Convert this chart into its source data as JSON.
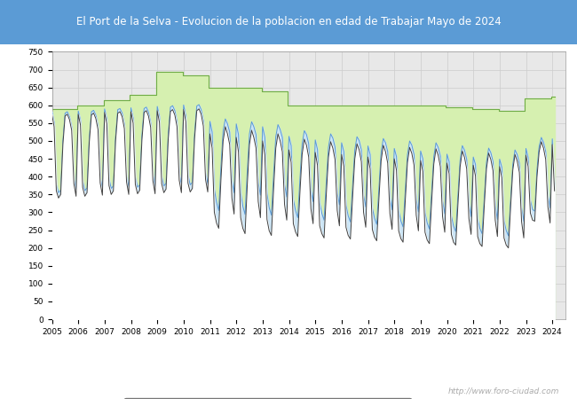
{
  "title": "El Port de la Selva - Evolucion de la poblacion en edad de Trabajar Mayo de 2024",
  "title_bg_color": "#5b9bd5",
  "title_text_color": "#ffffff",
  "plot_bg_color": "#e8e8e8",
  "chart_bg_color": "#ffffff",
  "grid_color": "#cccccc",
  "ylim": [
    0,
    750
  ],
  "yticks": [
    0,
    50,
    100,
    150,
    200,
    250,
    300,
    350,
    400,
    450,
    500,
    550,
    600,
    650,
    700,
    750
  ],
  "watermark": "http://www.foro-ciudad.com",
  "hab_color_fill": "#d6f0b0",
  "hab_color_edge": "#70ad47",
  "parados_color_fill": "#cce5f5",
  "parados_color_edge": "#5b9bd5",
  "ocupados_color": "#404040",
  "hab_data": [
    590,
    590,
    590,
    590,
    590,
    590,
    590,
    590,
    590,
    590,
    590,
    590,
    600,
    600,
    600,
    600,
    600,
    600,
    600,
    600,
    600,
    600,
    600,
    600,
    615,
    615,
    615,
    615,
    615,
    615,
    615,
    615,
    615,
    615,
    615,
    615,
    630,
    630,
    630,
    630,
    630,
    630,
    630,
    630,
    630,
    630,
    630,
    630,
    695,
    695,
    695,
    695,
    695,
    695,
    695,
    695,
    695,
    695,
    695,
    695,
    685,
    685,
    685,
    685,
    685,
    685,
    685,
    685,
    685,
    685,
    685,
    685,
    650,
    650,
    650,
    650,
    650,
    650,
    650,
    650,
    650,
    650,
    650,
    650,
    650,
    650,
    650,
    650,
    650,
    650,
    650,
    650,
    650,
    650,
    650,
    650,
    640,
    640,
    640,
    640,
    640,
    640,
    640,
    640,
    640,
    640,
    640,
    640,
    600,
    600,
    600,
    600,
    600,
    600,
    600,
    600,
    600,
    600,
    600,
    600,
    600,
    600,
    600,
    600,
    600,
    600,
    600,
    600,
    600,
    600,
    600,
    600,
    600,
    600,
    600,
    600,
    600,
    600,
    600,
    600,
    600,
    600,
    600,
    600,
    600,
    600,
    600,
    600,
    600,
    600,
    600,
    600,
    600,
    600,
    600,
    600,
    600,
    600,
    600,
    600,
    600,
    600,
    600,
    600,
    600,
    600,
    600,
    600,
    600,
    600,
    600,
    600,
    600,
    600,
    600,
    600,
    600,
    600,
    600,
    600,
    595,
    595,
    595,
    595,
    595,
    595,
    595,
    595,
    595,
    595,
    595,
    595,
    590,
    590,
    590,
    590,
    590,
    590,
    590,
    590,
    590,
    590,
    590,
    590,
    585,
    585,
    585,
    585,
    585,
    585,
    585,
    585,
    585,
    585,
    585,
    585,
    620,
    620,
    620,
    620,
    620,
    620,
    620,
    620,
    620,
    620,
    620,
    620,
    625,
    625
  ],
  "ocupados_data": [
    575,
    540,
    360,
    340,
    350,
    490,
    570,
    575,
    560,
    530,
    380,
    345,
    575,
    545,
    370,
    345,
    355,
    495,
    573,
    578,
    563,
    532,
    382,
    348,
    580,
    548,
    375,
    350,
    360,
    500,
    578,
    582,
    568,
    535,
    385,
    350,
    582,
    550,
    378,
    352,
    362,
    502,
    580,
    585,
    570,
    538,
    388,
    352,
    585,
    552,
    380,
    355,
    365,
    505,
    583,
    588,
    573,
    540,
    390,
    355,
    588,
    554,
    382,
    357,
    367,
    507,
    585,
    590,
    575,
    542,
    392,
    357,
    520,
    480,
    300,
    270,
    255,
    390,
    500,
    540,
    520,
    490,
    340,
    295,
    510,
    470,
    285,
    255,
    240,
    375,
    490,
    530,
    510,
    480,
    330,
    285,
    500,
    460,
    280,
    248,
    235,
    365,
    480,
    520,
    500,
    470,
    322,
    278,
    475,
    440,
    268,
    245,
    232,
    355,
    462,
    505,
    488,
    455,
    310,
    268,
    468,
    432,
    262,
    240,
    228,
    348,
    455,
    498,
    480,
    448,
    305,
    262,
    462,
    428,
    258,
    235,
    225,
    342,
    450,
    492,
    475,
    442,
    300,
    258,
    455,
    422,
    252,
    230,
    220,
    338,
    445,
    488,
    470,
    438,
    296,
    252,
    450,
    418,
    248,
    226,
    216,
    332,
    440,
    482,
    465,
    432,
    292,
    248,
    445,
    414,
    244,
    222,
    212,
    328,
    435,
    478,
    460,
    428,
    288,
    244,
    438,
    408,
    238,
    216,
    208,
    322,
    428,
    472,
    454,
    422,
    282,
    238,
    432,
    402,
    232,
    212,
    204,
    318,
    422,
    466,
    448,
    416,
    278,
    232,
    428,
    396,
    228,
    208,
    200,
    314,
    418,
    462,
    444,
    412,
    274,
    228,
    460,
    428,
    298,
    278,
    275,
    398,
    470,
    498,
    480,
    448,
    315,
    270,
    490,
    360
  ],
  "parados_data": [
    8,
    12,
    18,
    15,
    12,
    10,
    8,
    7,
    8,
    10,
    14,
    16,
    9,
    13,
    19,
    16,
    13,
    11,
    9,
    8,
    9,
    11,
    15,
    17,
    10,
    14,
    20,
    17,
    14,
    12,
    10,
    9,
    10,
    12,
    16,
    18,
    11,
    15,
    21,
    18,
    15,
    13,
    11,
    10,
    11,
    13,
    17,
    19,
    12,
    16,
    22,
    19,
    16,
    14,
    12,
    11,
    12,
    14,
    18,
    20,
    13,
    17,
    23,
    20,
    17,
    15,
    13,
    12,
    13,
    15,
    19,
    21,
    35,
    45,
    65,
    58,
    50,
    35,
    28,
    22,
    28,
    35,
    50,
    60,
    38,
    48,
    70,
    62,
    54,
    38,
    30,
    24,
    30,
    38,
    53,
    63,
    40,
    50,
    72,
    65,
    57,
    40,
    32,
    26,
    32,
    40,
    55,
    65,
    38,
    47,
    68,
    60,
    53,
    37,
    29,
    24,
    30,
    37,
    52,
    62,
    35,
    44,
    65,
    57,
    50,
    35,
    27,
    22,
    28,
    35,
    49,
    59,
    33,
    42,
    62,
    55,
    48,
    33,
    25,
    20,
    26,
    33,
    47,
    57,
    31,
    40,
    60,
    53,
    46,
    31,
    24,
    19,
    25,
    32,
    46,
    55,
    29,
    38,
    57,
    50,
    43,
    29,
    22,
    18,
    23,
    30,
    44,
    53,
    27,
    36,
    55,
    48,
    41,
    27,
    21,
    17,
    22,
    29,
    43,
    52,
    25,
    34,
    52,
    45,
    38,
    25,
    19,
    15,
    20,
    27,
    41,
    50,
    23,
    32,
    50,
    43,
    36,
    23,
    18,
    14,
    19,
    26,
    40,
    48,
    21,
    30,
    48,
    41,
    34,
    21,
    16,
    13,
    18,
    25,
    39,
    47,
    19,
    25,
    35,
    30,
    28,
    20,
    15,
    12,
    16,
    22,
    33,
    42,
    16,
    20
  ]
}
